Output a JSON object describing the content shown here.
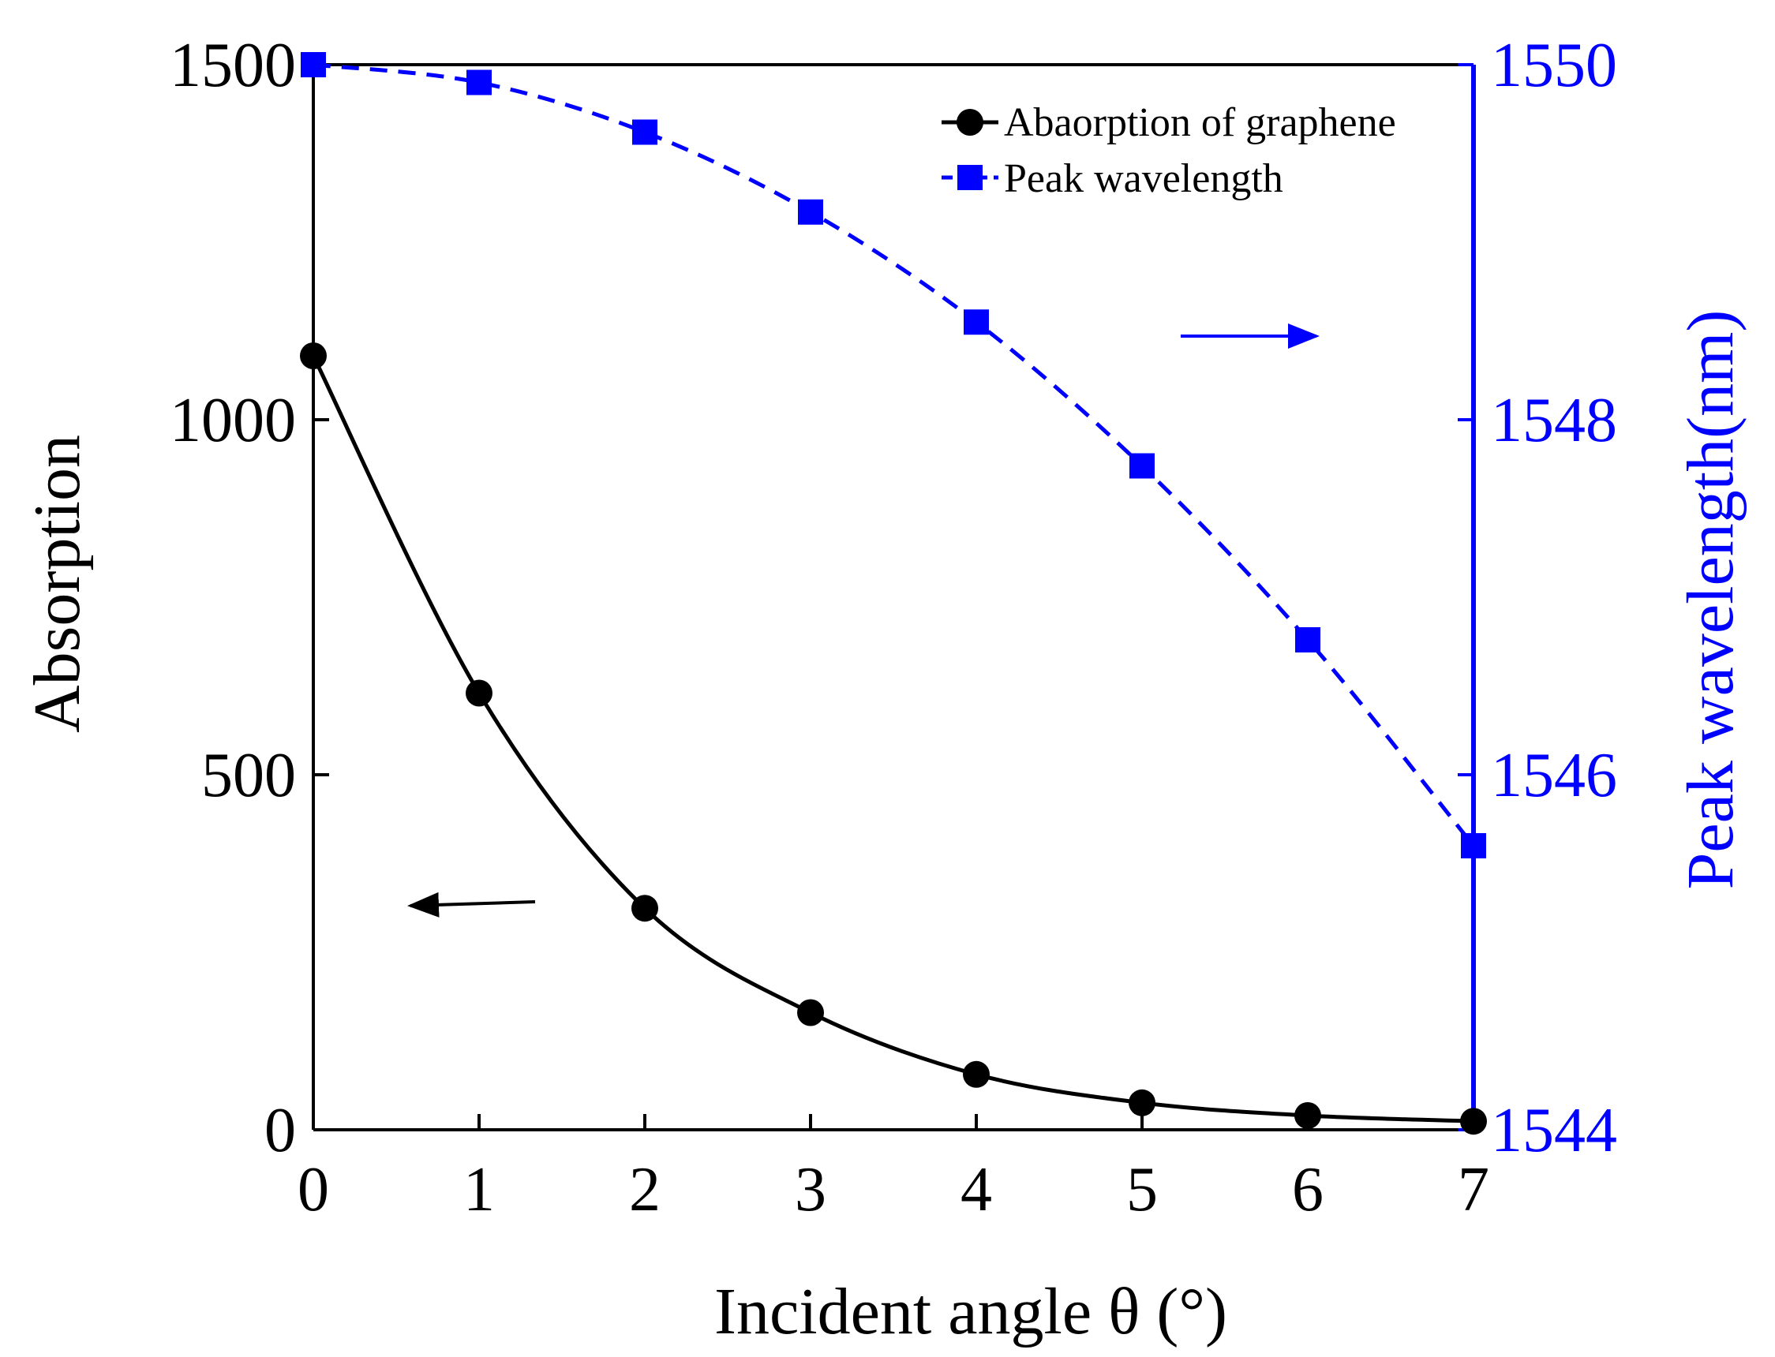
{
  "chart_data": {
    "type": "line",
    "x": [
      0,
      1,
      2,
      3,
      4,
      5,
      6,
      7
    ],
    "xlabel": "Incident angle θ (°)",
    "xlim": [
      0,
      7
    ],
    "xticks": [
      "0",
      "1",
      "2",
      "3",
      "4",
      "5",
      "6",
      "7"
    ],
    "ylabel": "Absorption",
    "ylim": [
      0,
      1500
    ],
    "yticks": [
      "0",
      "500",
      "1000",
      "1500"
    ],
    "y2label": "Peak wavelength(nm)",
    "y2lim": [
      1544,
      1550
    ],
    "y2ticks": [
      "1544",
      "1546",
      "1548",
      "1550"
    ],
    "grid": false,
    "legend_position": "top-right",
    "series": [
      {
        "name": "Abaorption of graphene",
        "axis": "left",
        "color": "#000000",
        "marker": "circle",
        "line_style": "solid",
        "values": [
          1090,
          615,
          312,
          165,
          78,
          38,
          20,
          12
        ]
      },
      {
        "name": "Peak wavelength",
        "axis": "right",
        "color": "#0000ff",
        "marker": "square",
        "line_style": "dashed",
        "values": [
          1550.0,
          1549.9,
          1549.62,
          1549.17,
          1548.55,
          1547.74,
          1546.76,
          1545.6
        ]
      }
    ],
    "annotations": [
      {
        "type": "arrow",
        "direction": "left",
        "color": "#000000",
        "refers_to": "left-axis"
      },
      {
        "type": "arrow",
        "direction": "right",
        "color": "#0000ff",
        "refers_to": "right-axis"
      }
    ]
  }
}
